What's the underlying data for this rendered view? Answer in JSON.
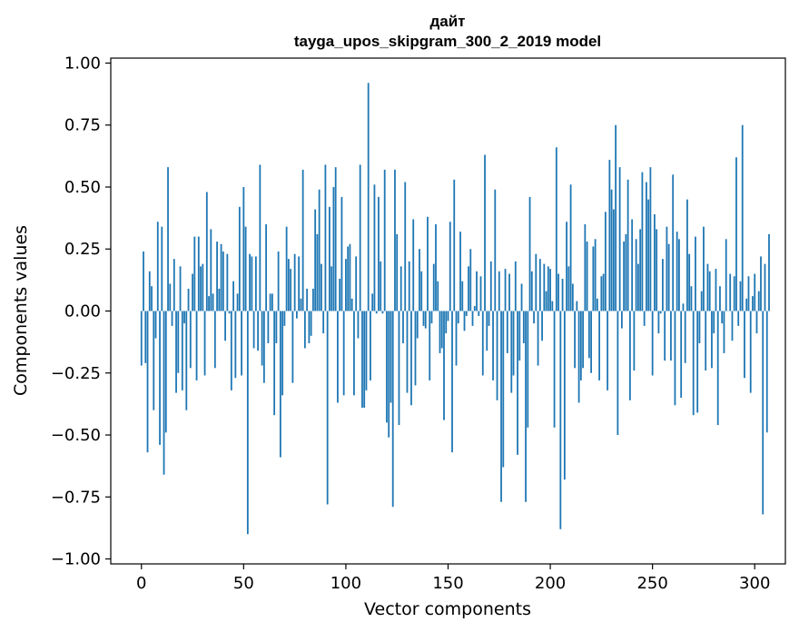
{
  "chart_data": {
    "type": "bar",
    "title": "дайт",
    "subtitle": "tayga_upos_skipgram_300_2_2019 model",
    "xlabel": "Vector components",
    "ylabel": "Components values",
    "xlim": [
      -15,
      315
    ],
    "ylim": [
      -1.02,
      1.02
    ],
    "xticks": [
      "0",
      "50",
      "100",
      "150",
      "200",
      "250",
      "300"
    ],
    "yticks": [
      "−1.00",
      "−0.75",
      "−0.50",
      "−0.25",
      "0.00",
      "0.25",
      "0.50",
      "0.75",
      "1.00"
    ],
    "grid": false,
    "bar_color": "#1f77b4",
    "values": [
      -0.22,
      0.24,
      -0.21,
      -0.57,
      0.16,
      0.1,
      -0.4,
      -0.11,
      0.36,
      -0.54,
      0.34,
      -0.66,
      -0.49,
      0.58,
      0.11,
      -0.06,
      0.21,
      -0.33,
      -0.25,
      0.18,
      -0.32,
      -0.05,
      -0.4,
      0.09,
      -0.23,
      0.15,
      0.3,
      -0.28,
      0.3,
      0.18,
      0.19,
      -0.26,
      0.48,
      0.06,
      0.33,
      0.07,
      -0.23,
      0.28,
      0.09,
      0.27,
      0.24,
      -0.12,
      0.23,
      -0.01,
      -0.32,
      0.12,
      -0.27,
      0.07,
      0.42,
      -0.26,
      0.5,
      0.34,
      -0.9,
      0.23,
      0.22,
      -0.15,
      0.22,
      -0.16,
      0.59,
      -0.22,
      -0.29,
      0.35,
      -0.13,
      0.07,
      0.07,
      -0.42,
      -0.13,
      0.24,
      -0.59,
      -0.34,
      -0.06,
      0.34,
      0.21,
      0.17,
      -0.29,
      0.23,
      -0.03,
      0.22,
      0.05,
      0.57,
      -0.15,
      0.09,
      -0.13,
      -0.1,
      0.09,
      0.41,
      0.31,
      0.49,
      0.19,
      -0.09,
      0.59,
      -0.78,
      0.42,
      0.18,
      0.5,
      0.58,
      -0.37,
      0.13,
      0.46,
      -0.34,
      0.21,
      0.26,
      0.27,
      0.05,
      -0.34,
      0.22,
      -0.11,
      0.59,
      -0.39,
      -0.39,
      -0.32,
      0.92,
      -0.28,
      0.07,
      0.51,
      -0.01,
      0.46,
      0.2,
      -0.01,
      0.57,
      -0.45,
      -0.51,
      -0.37,
      -0.79,
      0.57,
      0.31,
      -0.46,
      0.18,
      -0.13,
      0.52,
      -0.33,
      0.2,
      -0.38,
      0.37,
      -0.3,
      -0.11,
      0.25,
      0.16,
      -0.06,
      -0.07,
      0.38,
      -0.28,
      -0.05,
      0.19,
      0.35,
      0.12,
      -0.17,
      -0.15,
      -0.44,
      -0.09,
      -0.04,
      0.36,
      -0.57,
      0.53,
      -0.22,
      -0.05,
      0.32,
      0.12,
      -0.08,
      -0.02,
      0.18,
      0.25,
      -0.06,
      0.02,
      0.16,
      -0.02,
      0.14,
      -0.26,
      0.63,
      -0.16,
      -0.06,
      0.2,
      -0.28,
      0.49,
      -0.36,
      0.16,
      -0.77,
      -0.63,
      0.17,
      -0.17,
      0.15,
      -0.33,
      -0.26,
      0.2,
      -0.58,
      -0.2,
      0.11,
      -0.13,
      -0.77,
      -0.47,
      0.46,
      0.16,
      -0.05,
      0.23,
      -0.22,
      0.21,
      -0.12,
      0.19,
      0.08,
      0.18,
      0.17,
      0.04,
      -0.47,
      0.66,
      0.15,
      -0.88,
      0.13,
      -0.68,
      0.36,
      0.18,
      0.51,
      0.11,
      -0.23,
      0.04,
      -0.37,
      -0.28,
      -0.23,
      0.35,
      0.28,
      -0.19,
      -0.25,
      0.26,
      0.29,
      0.05,
      -0.28,
      0.14,
      0.15,
      0.4,
      -0.32,
      0.61,
      0.49,
      0.41,
      0.75,
      -0.5,
      0.58,
      -0.07,
      0.28,
      0.31,
      0.53,
      -0.36,
      0.37,
      -0.24,
      0.29,
      0.19,
      0.33,
      0.56,
      -0.06,
      0.52,
      0.45,
      0.58,
      -0.26,
      0.39,
      0.33,
      -0.09,
      -0.01,
      0.21,
      -0.2,
      0.34,
      0.27,
      -0.2,
      0.55,
      -0.38,
      0.32,
      0.29,
      -0.35,
      0.03,
      -0.21,
      0.45,
      0.23,
      0.1,
      -0.42,
      0.3,
      -0.41,
      -0.13,
      0.08,
      0.34,
      -0.24,
      0.19,
      0.16,
      -0.23,
      -0.09,
      0.17,
      -0.46,
      0.1,
      -0.05,
      -0.17,
      0.29,
      0.0,
      0.15,
      -0.12,
      0.14,
      0.62,
      -0.06,
      0.12,
      0.75,
      -0.27,
      0.05,
      0.14,
      -0.33,
      0.06,
      0.15,
      -0.09,
      0.08,
      0.22,
      -0.82,
      0.19,
      -0.49,
      0.31
    ]
  }
}
